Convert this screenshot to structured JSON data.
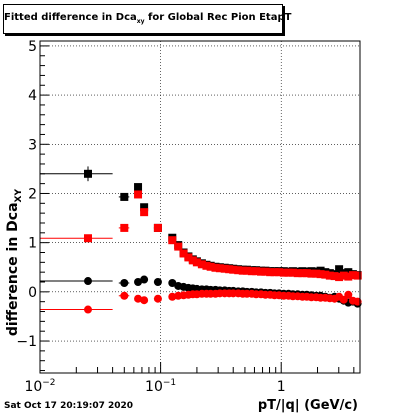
{
  "title": {
    "prefix": "Fitted difference in Dca",
    "sub": "xy",
    "suffix": " for Global Rec Pion EtapT"
  },
  "timestamp": "Sat Oct 17 20:19:07 2020",
  "chart_data": {
    "type": "scatter",
    "xscale": "log",
    "xlim": [
      0.01,
      4.5
    ],
    "ylim": [
      -1.65,
      5.1
    ],
    "grid": true,
    "ylabel": "difference in Dca",
    "ylabel_sub": "XY",
    "xlabel": "pT/|q| (GeV/c)",
    "yticks": [
      {
        "v": -1,
        "label": "−1"
      },
      {
        "v": 0,
        "label": "0"
      },
      {
        "v": 1,
        "label": "1"
      },
      {
        "v": 2,
        "label": "2"
      },
      {
        "v": 3,
        "label": "3"
      },
      {
        "v": 4,
        "label": "4"
      },
      {
        "v": 5,
        "label": "5"
      }
    ],
    "xticks": [
      {
        "v": 0.01,
        "label": "10",
        "sup": "−2"
      },
      {
        "v": 0.1,
        "label": "10",
        "sup": "−1"
      },
      {
        "v": 1,
        "label": "1",
        "sup": ""
      }
    ],
    "series": [
      {
        "marker": "square",
        "color": "#000000",
        "points": [
          {
            "x": 0.025,
            "y": 2.4,
            "xlo": 0.01,
            "xhi": 0.04,
            "yerr": 0.15
          },
          {
            "x": 0.05,
            "y": 1.93,
            "xlo": 0.045,
            "xhi": 0.055,
            "yerr": 0.06
          },
          {
            "x": 0.065,
            "y": 2.13,
            "yerr": 0.07
          },
          {
            "x": 0.073,
            "y": 1.72,
            "yerr": 0.06
          },
          {
            "x": 0.095,
            "y": 1.3,
            "xlo": 0.088,
            "xhi": 0.102,
            "yerr": 0.04
          },
          {
            "x": 0.125,
            "y": 1.1,
            "yerr": 0.03
          },
          {
            "x": 0.14,
            "y": 0.95
          },
          {
            "x": 0.155,
            "y": 0.8
          },
          {
            "x": 0.17,
            "y": 0.72
          },
          {
            "x": 0.185,
            "y": 0.66
          },
          {
            "x": 0.2,
            "y": 0.62
          },
          {
            "x": 0.22,
            "y": 0.58
          },
          {
            "x": 0.24,
            "y": 0.55
          },
          {
            "x": 0.26,
            "y": 0.53
          },
          {
            "x": 0.285,
            "y": 0.51
          },
          {
            "x": 0.31,
            "y": 0.5
          },
          {
            "x": 0.34,
            "y": 0.49
          },
          {
            "x": 0.37,
            "y": 0.48
          },
          {
            "x": 0.4,
            "y": 0.47
          },
          {
            "x": 0.44,
            "y": 0.46
          },
          {
            "x": 0.48,
            "y": 0.45
          },
          {
            "x": 0.52,
            "y": 0.45
          },
          {
            "x": 0.57,
            "y": 0.44
          },
          {
            "x": 0.62,
            "y": 0.44
          },
          {
            "x": 0.68,
            "y": 0.43
          },
          {
            "x": 0.74,
            "y": 0.43
          },
          {
            "x": 0.81,
            "y": 0.42
          },
          {
            "x": 0.88,
            "y": 0.42
          },
          {
            "x": 0.96,
            "y": 0.42
          },
          {
            "x": 1.05,
            "y": 0.42
          },
          {
            "x": 1.15,
            "y": 0.41
          },
          {
            "x": 1.25,
            "y": 0.42
          },
          {
            "x": 1.37,
            "y": 0.41
          },
          {
            "x": 1.5,
            "y": 0.42
          },
          {
            "x": 1.63,
            "y": 0.41
          },
          {
            "x": 1.78,
            "y": 0.42
          },
          {
            "x": 1.95,
            "y": 0.41
          },
          {
            "x": 2.12,
            "y": 0.43
          },
          {
            "x": 2.32,
            "y": 0.4
          },
          {
            "x": 2.53,
            "y": 0.38
          },
          {
            "x": 2.77,
            "y": 0.36
          },
          {
            "x": 3.02,
            "y": 0.46
          },
          {
            "x": 3.3,
            "y": 0.38
          },
          {
            "x": 3.6,
            "y": 0.4
          },
          {
            "x": 3.93,
            "y": 0.36
          },
          {
            "x": 4.3,
            "y": 0.34
          }
        ]
      },
      {
        "marker": "square",
        "color": "#ff0000",
        "points": [
          {
            "x": 0.025,
            "y": 1.09,
            "xlo": 0.01,
            "xhi": 0.04,
            "yerr": 0.06
          },
          {
            "x": 0.05,
            "y": 1.3,
            "xlo": 0.045,
            "xhi": 0.055,
            "yerr": 0.05
          },
          {
            "x": 0.065,
            "y": 1.98,
            "yerr": 0.06
          },
          {
            "x": 0.073,
            "y": 1.62,
            "yerr": 0.05
          },
          {
            "x": 0.095,
            "y": 1.3,
            "xlo": 0.088,
            "xhi": 0.102,
            "yerr": 0.04
          },
          {
            "x": 0.125,
            "y": 1.05,
            "yerr": 0.03
          },
          {
            "x": 0.14,
            "y": 0.92
          },
          {
            "x": 0.155,
            "y": 0.78
          },
          {
            "x": 0.17,
            "y": 0.7
          },
          {
            "x": 0.185,
            "y": 0.64
          },
          {
            "x": 0.2,
            "y": 0.6
          },
          {
            "x": 0.22,
            "y": 0.56
          },
          {
            "x": 0.24,
            "y": 0.53
          },
          {
            "x": 0.26,
            "y": 0.51
          },
          {
            "x": 0.285,
            "y": 0.49
          },
          {
            "x": 0.31,
            "y": 0.48
          },
          {
            "x": 0.34,
            "y": 0.47
          },
          {
            "x": 0.37,
            "y": 0.46
          },
          {
            "x": 0.4,
            "y": 0.45
          },
          {
            "x": 0.44,
            "y": 0.44
          },
          {
            "x": 0.48,
            "y": 0.43
          },
          {
            "x": 0.52,
            "y": 0.43
          },
          {
            "x": 0.57,
            "y": 0.42
          },
          {
            "x": 0.62,
            "y": 0.42
          },
          {
            "x": 0.68,
            "y": 0.41
          },
          {
            "x": 0.74,
            "y": 0.41
          },
          {
            "x": 0.81,
            "y": 0.4
          },
          {
            "x": 0.88,
            "y": 0.4
          },
          {
            "x": 0.96,
            "y": 0.4
          },
          {
            "x": 1.05,
            "y": 0.39
          },
          {
            "x": 1.15,
            "y": 0.39
          },
          {
            "x": 1.25,
            "y": 0.39
          },
          {
            "x": 1.37,
            "y": 0.38
          },
          {
            "x": 1.5,
            "y": 0.38
          },
          {
            "x": 1.63,
            "y": 0.38
          },
          {
            "x": 1.78,
            "y": 0.37
          },
          {
            "x": 1.95,
            "y": 0.37
          },
          {
            "x": 2.12,
            "y": 0.36
          },
          {
            "x": 2.32,
            "y": 0.35
          },
          {
            "x": 2.53,
            "y": 0.33
          },
          {
            "x": 2.77,
            "y": 0.32
          },
          {
            "x": 3.02,
            "y": 0.3
          },
          {
            "x": 3.3,
            "y": 0.33
          },
          {
            "x": 3.6,
            "y": 0.31
          },
          {
            "x": 3.93,
            "y": 0.34
          },
          {
            "x": 4.3,
            "y": 0.33
          }
        ]
      },
      {
        "marker": "circle",
        "color": "#000000",
        "points": [
          {
            "x": 0.025,
            "y": 0.22,
            "xlo": 0.01,
            "xhi": 0.04,
            "yerr": 0.08
          },
          {
            "x": 0.05,
            "y": 0.18,
            "xlo": 0.045,
            "xhi": 0.055,
            "yerr": 0.04
          },
          {
            "x": 0.065,
            "y": 0.2,
            "yerr": 0.04
          },
          {
            "x": 0.073,
            "y": 0.25,
            "yerr": 0.04
          },
          {
            "x": 0.095,
            "y": 0.2,
            "xlo": 0.088,
            "xhi": 0.102,
            "yerr": 0.03
          },
          {
            "x": 0.125,
            "y": 0.18
          },
          {
            "x": 0.14,
            "y": 0.12
          },
          {
            "x": 0.155,
            "y": 0.1
          },
          {
            "x": 0.17,
            "y": 0.08
          },
          {
            "x": 0.185,
            "y": 0.07
          },
          {
            "x": 0.2,
            "y": 0.06
          },
          {
            "x": 0.22,
            "y": 0.05
          },
          {
            "x": 0.24,
            "y": 0.05
          },
          {
            "x": 0.26,
            "y": 0.04
          },
          {
            "x": 0.285,
            "y": 0.04
          },
          {
            "x": 0.31,
            "y": 0.03
          },
          {
            "x": 0.34,
            "y": 0.03
          },
          {
            "x": 0.37,
            "y": 0.02
          },
          {
            "x": 0.4,
            "y": 0.02
          },
          {
            "x": 0.44,
            "y": 0.01
          },
          {
            "x": 0.48,
            "y": 0.01
          },
          {
            "x": 0.52,
            "y": 0.0
          },
          {
            "x": 0.57,
            "y": 0.0
          },
          {
            "x": 0.62,
            "y": -0.01
          },
          {
            "x": 0.68,
            "y": -0.01
          },
          {
            "x": 0.74,
            "y": -0.02
          },
          {
            "x": 0.81,
            "y": -0.02
          },
          {
            "x": 0.88,
            "y": -0.03
          },
          {
            "x": 0.96,
            "y": -0.03
          },
          {
            "x": 1.05,
            "y": -0.04
          },
          {
            "x": 1.15,
            "y": -0.04
          },
          {
            "x": 1.25,
            "y": -0.05
          },
          {
            "x": 1.37,
            "y": -0.05
          },
          {
            "x": 1.5,
            "y": -0.06
          },
          {
            "x": 1.63,
            "y": -0.06
          },
          {
            "x": 1.78,
            "y": -0.07
          },
          {
            "x": 1.95,
            "y": -0.08
          },
          {
            "x": 2.12,
            "y": -0.08
          },
          {
            "x": 2.32,
            "y": -0.1
          },
          {
            "x": 2.53,
            "y": -0.12
          },
          {
            "x": 2.77,
            "y": -0.1
          },
          {
            "x": 3.02,
            "y": -0.14
          },
          {
            "x": 3.3,
            "y": -0.18
          },
          {
            "x": 3.6,
            "y": -0.22
          },
          {
            "x": 3.93,
            "y": -0.2
          },
          {
            "x": 4.3,
            "y": -0.24
          }
        ]
      },
      {
        "marker": "circle",
        "color": "#ff0000",
        "points": [
          {
            "x": 0.025,
            "y": -0.36,
            "xlo": 0.01,
            "xhi": 0.04,
            "yerr": 0.06
          },
          {
            "x": 0.05,
            "y": -0.08,
            "xlo": 0.045,
            "xhi": 0.055,
            "yerr": 0.04
          },
          {
            "x": 0.065,
            "y": -0.14,
            "yerr": 0.04
          },
          {
            "x": 0.073,
            "y": -0.17,
            "yerr": 0.04
          },
          {
            "x": 0.095,
            "y": -0.14,
            "xlo": 0.088,
            "xhi": 0.102,
            "yerr": 0.03
          },
          {
            "x": 0.125,
            "y": -0.1
          },
          {
            "x": 0.14,
            "y": -0.08
          },
          {
            "x": 0.155,
            "y": -0.07
          },
          {
            "x": 0.17,
            "y": -0.06
          },
          {
            "x": 0.185,
            "y": -0.05
          },
          {
            "x": 0.2,
            "y": -0.05
          },
          {
            "x": 0.22,
            "y": -0.04
          },
          {
            "x": 0.24,
            "y": -0.04
          },
          {
            "x": 0.26,
            "y": -0.04
          },
          {
            "x": 0.285,
            "y": -0.04
          },
          {
            "x": 0.31,
            "y": -0.03
          },
          {
            "x": 0.34,
            "y": -0.03
          },
          {
            "x": 0.37,
            "y": -0.03
          },
          {
            "x": 0.4,
            "y": -0.03
          },
          {
            "x": 0.44,
            "y": -0.03
          },
          {
            "x": 0.48,
            "y": -0.04
          },
          {
            "x": 0.52,
            "y": -0.04
          },
          {
            "x": 0.57,
            "y": -0.04
          },
          {
            "x": 0.62,
            "y": -0.05
          },
          {
            "x": 0.68,
            "y": -0.05
          },
          {
            "x": 0.74,
            "y": -0.06
          },
          {
            "x": 0.81,
            "y": -0.06
          },
          {
            "x": 0.88,
            "y": -0.07
          },
          {
            "x": 0.96,
            "y": -0.07
          },
          {
            "x": 1.05,
            "y": -0.08
          },
          {
            "x": 1.15,
            "y": -0.08
          },
          {
            "x": 1.25,
            "y": -0.09
          },
          {
            "x": 1.37,
            "y": -0.09
          },
          {
            "x": 1.5,
            "y": -0.1
          },
          {
            "x": 1.63,
            "y": -0.1
          },
          {
            "x": 1.78,
            "y": -0.11
          },
          {
            "x": 1.95,
            "y": -0.11
          },
          {
            "x": 2.12,
            "y": -0.12
          },
          {
            "x": 2.32,
            "y": -0.12
          },
          {
            "x": 2.53,
            "y": -0.13
          },
          {
            "x": 2.77,
            "y": -0.14
          },
          {
            "x": 3.02,
            "y": -0.1
          },
          {
            "x": 3.3,
            "y": -0.16
          },
          {
            "x": 3.6,
            "y": -0.06
          },
          {
            "x": 3.93,
            "y": -0.18
          },
          {
            "x": 4.3,
            "y": -0.2
          }
        ]
      }
    ]
  }
}
